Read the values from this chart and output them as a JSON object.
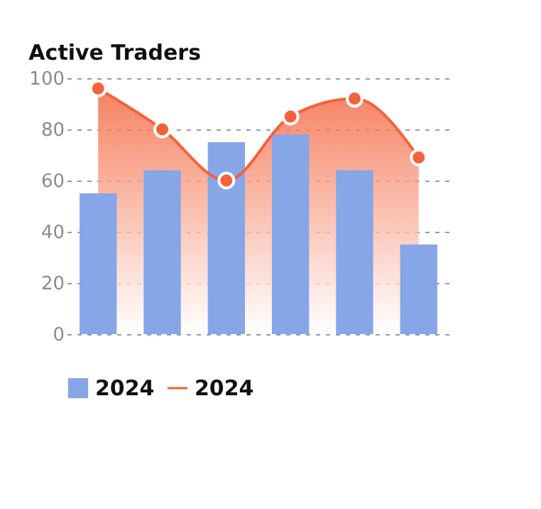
{
  "chart_data": {
    "type": "bar",
    "title": "Active Traders",
    "categories": [
      null,
      null,
      null,
      null,
      null,
      null
    ],
    "series": [
      {
        "name": "2024",
        "color": "#86a6e8",
        "values": [
          55,
          64,
          75,
          78,
          64,
          35
        ]
      },
      {
        "name": "2024",
        "type": "area",
        "color": "#f4623a",
        "marker": "circle",
        "values": [
          96,
          80,
          60,
          85,
          92,
          69
        ]
      }
    ],
    "ylim": [
      0,
      100
    ],
    "yticks": [
      0,
      20,
      40,
      60,
      80,
      100
    ],
    "grid": "y",
    "legend": "bottom"
  }
}
